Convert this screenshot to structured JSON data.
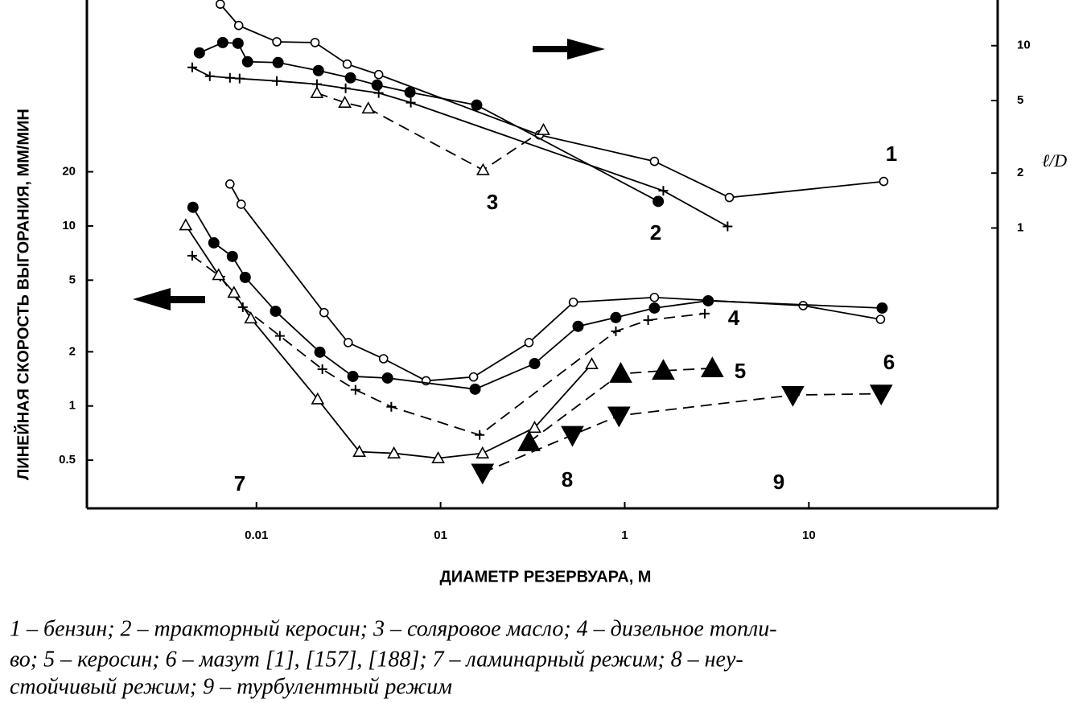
{
  "chart_data": {
    "type": "scatter",
    "xscale": "log",
    "yscale": "log",
    "y2scale": "log",
    "xlim": [
      0.0012,
      106
    ],
    "xticks": [
      0.01,
      {
        "value": 0.1,
        "label": "01"
      },
      1,
      10
    ],
    "ylim": [
      0.27,
      180
    ],
    "yticks": [
      20,
      10,
      5,
      2,
      1,
      0.5
    ],
    "y2lim": [
      0.029,
      17.8
    ],
    "y2ticks": [
      10,
      5,
      2,
      1
    ],
    "ylabel": "ЛИНЕЙНАЯ СКОРОСТЬ ВЫГОРАНИЯ, ММ/МИН",
    "xlabel": "ДИАМЕТР РЕЗЕРВУАРА, М",
    "y2label": "ℓ/D",
    "annotations": [
      "1",
      "2",
      "3",
      "4",
      "5",
      "6",
      "7",
      "8",
      "9"
    ],
    "caption": [
      "1 – бензин; 2 – тракторный керосин; 3 – соляровое масло; 4 – дизельное топли-",
      "во; 5 – керосин; 6 – мазут [1], [157], [188]; 7 – ламинарный режим; 8 – неу-",
      "стойчивый режим; 9 – турбулентный режим"
    ],
    "series": [
      {
        "axis": "y2",
        "marker": "circle-open",
        "dashed": false,
        "color": "#000",
        "x": [
          0.00636,
          0.00801,
          0.0129,
          0.0208,
          0.0311,
          0.0461,
          0.344,
          1.45,
          3.7,
          25.5
        ],
        "values": [
          16.9,
          12.9,
          10.5,
          10.4,
          7.92,
          6.94,
          3.24,
          2.32,
          1.47,
          1.8
        ]
      },
      {
        "axis": "y2",
        "marker": "circle-filled",
        "dashed": false,
        "color": "#000",
        "x": [
          0.0049,
          0.00656,
          0.00794,
          0.00895,
          0.0131,
          0.0217,
          0.0324,
          0.0452,
          0.0682,
          0.157,
          1.52
        ],
        "values": [
          9.13,
          10.4,
          10.3,
          8.16,
          8.08,
          7.3,
          6.66,
          6.08,
          5.55,
          4.72,
          1.4
        ]
      },
      {
        "axis": "y2",
        "marker": "plus",
        "dashed": false,
        "color": "#000",
        "x": [
          0.00448,
          0.00558,
          0.00718,
          0.0081,
          0.0129,
          0.0213,
          0.0305,
          0.0461,
          0.0689,
          1.62,
          3.62
        ],
        "values": [
          7.6,
          6.8,
          6.66,
          6.6,
          6.4,
          6.15,
          5.84,
          5.5,
          4.87,
          1.6,
          1.02
        ]
      },
      {
        "axis": "y2",
        "marker": "triangle-open",
        "dashed": true,
        "color": "#000",
        "x": [
          0.0213,
          0.0302,
          0.0405,
          0.17,
          0.362
        ],
        "values": [
          5.5,
          4.87,
          4.53,
          2.08,
          3.45
        ]
      },
      {
        "marker": "circle-open",
        "dashed": false,
        "color": "#000",
        "x": [
          0.00718,
          0.00826,
          0.0233,
          0.0315,
          0.049,
          0.0834,
          0.151,
          0.302,
          0.526,
          1.45,
          9.31,
          24.5
        ],
        "values": [
          17.1,
          13.2,
          3.3,
          2.25,
          1.83,
          1.38,
          1.45,
          2.25,
          3.77,
          4.01,
          3.61,
          3.03
        ]
      },
      {
        "marker": "circle-filled",
        "dashed": false,
        "color": "#000",
        "x": [
          0.00452,
          0.00587,
          0.0074,
          0.00869,
          0.0127,
          0.0221,
          0.0334,
          0.0515,
          0.154,
          0.324,
          0.558,
          0.895,
          1.45,
          2.84,
          25.0
        ],
        "values": [
          12.7,
          8.06,
          6.77,
          5.18,
          3.36,
          1.99,
          1.46,
          1.43,
          1.24,
          1.72,
          2.77,
          3.1,
          3.5,
          3.84,
          3.5
        ]
      },
      {
        "marker": "plus",
        "dashed": true,
        "color": "#000",
        "x": [
          0.00448,
          0.00636,
          0.00843,
          0.0134,
          0.0228,
          0.0345,
          0.054,
          0.163,
          0.895,
          1.34,
          2.72
        ],
        "values": [
          6.84,
          5.23,
          3.54,
          2.45,
          1.6,
          1.23,
          0.99,
          0.69,
          2.6,
          3.0,
          3.26
        ]
      },
      {
        "marker": "triangle-open",
        "dashed": false,
        "color": "#000",
        "x": [
          0.00413,
          0.00623,
          0.00755,
          0.00932,
          0.0215,
          0.0362,
          0.0558,
          0.097,
          0.169,
          0.324,
          0.662
        ],
        "values": [
          10.1,
          5.34,
          4.26,
          3.07,
          1.09,
          0.557,
          0.546,
          0.513,
          0.546,
          0.758,
          1.71
        ]
      },
      {
        "marker": "triangle-filled",
        "dashed": true,
        "color": "#000",
        "x": [
          0.302,
          0.951,
          1.62,
          2.99
        ],
        "values": [
          0.63,
          1.51,
          1.57,
          1.62
        ]
      },
      {
        "marker": "triangle-down-filled",
        "dashed": true,
        "color": "#000",
        "x": [
          0.169,
          0.52,
          0.931,
          8.18,
          24.7
        ],
        "values": [
          0.426,
          0.69,
          0.884,
          1.15,
          1.17
        ]
      }
    ]
  }
}
